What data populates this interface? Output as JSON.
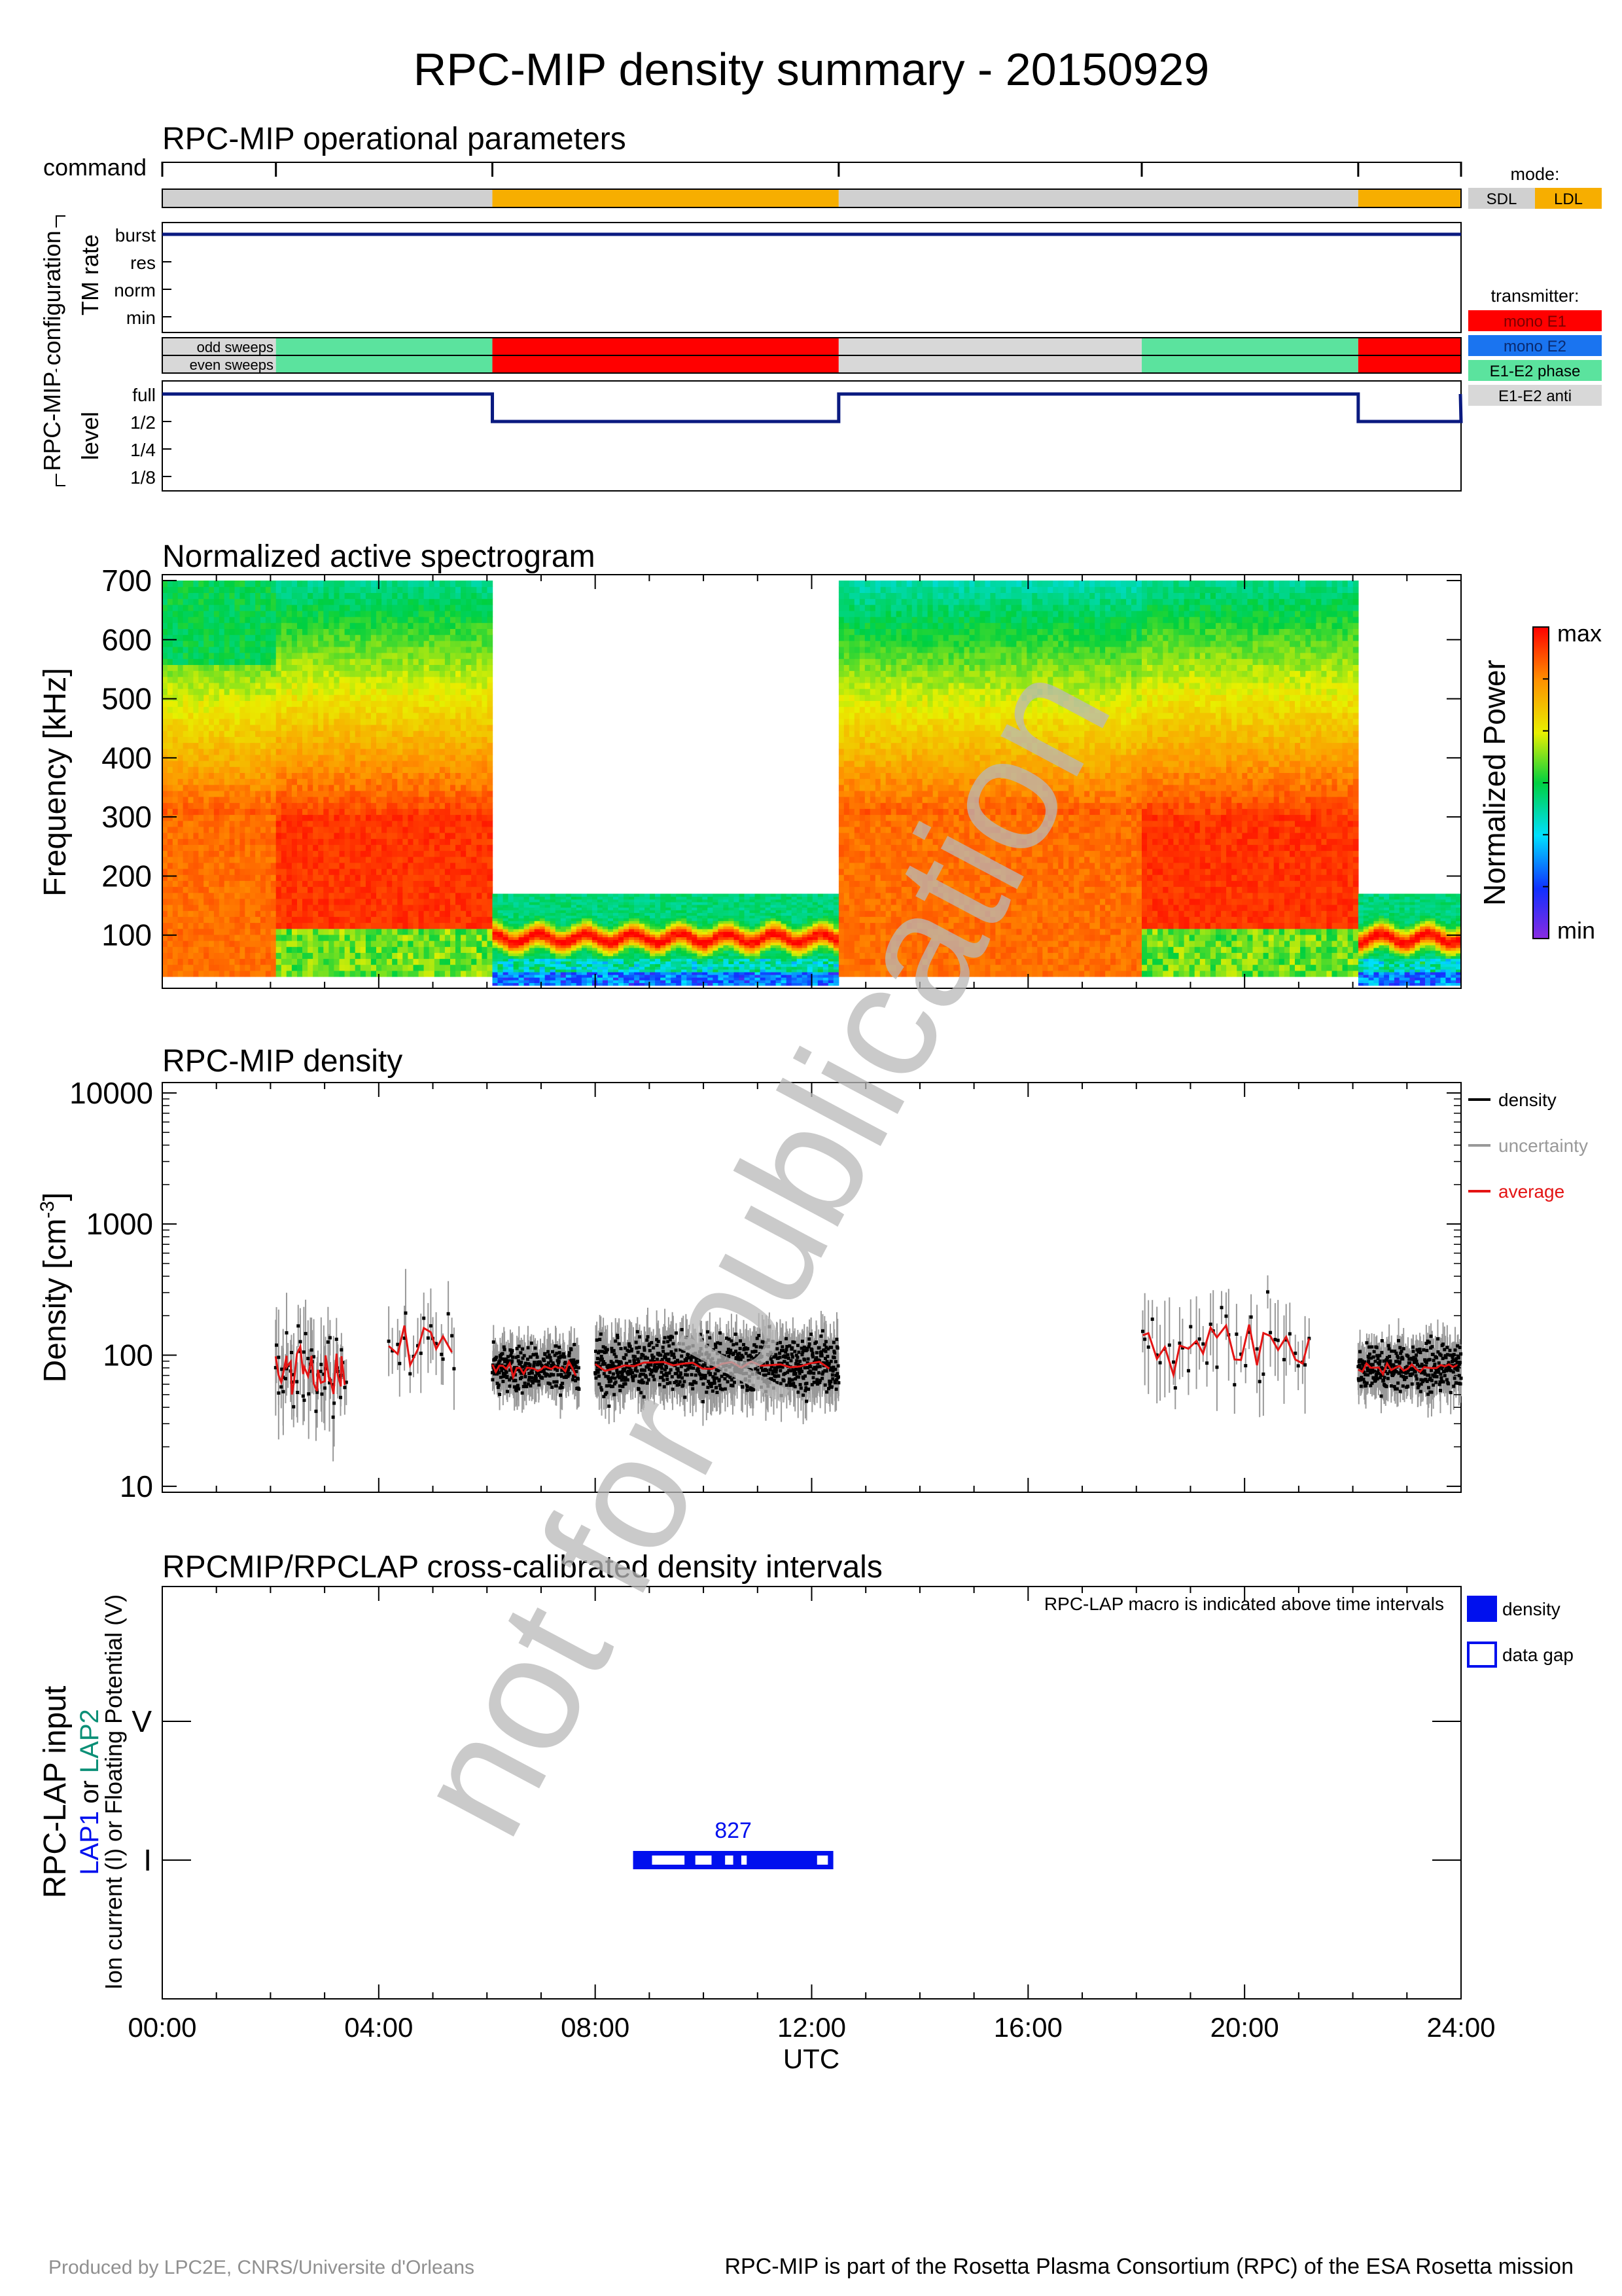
{
  "page": {
    "title": "RPC-MIP density summary - 20150929",
    "watermark": "not for publication",
    "footer_left": "Produced by LPC2E, CNRS/Universite d'Orleans",
    "footer_right": "RPC-MIP is part of the Rosetta Plasma Consortium (RPC) of the ESA Rosetta mission"
  },
  "colors": {
    "mode_sdl": "#d0d0d0",
    "mode_ldl": "#f7ae00",
    "mono_e1": "#ff0000",
    "mono_e2": "#1a74f0",
    "e1e2_phase": "#5be39e",
    "e1e2_anti": "#d8d8d8",
    "line_navy": "#0a1a80",
    "density": "#000000",
    "uncertainty": "#999999",
    "average": "#e41414",
    "lap_blue": "#0010ee",
    "lap2_teal": "#0a8f76"
  },
  "chart_data": [
    {
      "type": "table",
      "title": "RPC-MIP operational parameters",
      "group_label": "RPC-MIP configuration",
      "time_range_h": [
        0,
        24
      ],
      "command_label": "command",
      "command_times_h": [
        0,
        2.1,
        6.1,
        12.5,
        18.1,
        22.1,
        24
      ],
      "mode_legend_title": "mode:",
      "mode_legend": [
        {
          "label": "SDL",
          "color_key": "mode_sdl"
        },
        {
          "label": "LDL",
          "color_key": "mode_ldl"
        }
      ],
      "mode_segments": [
        {
          "start": 0,
          "end": 6.1,
          "mode": "SDL"
        },
        {
          "start": 6.1,
          "end": 12.5,
          "mode": "LDL"
        },
        {
          "start": 12.5,
          "end": 22.1,
          "mode": "SDL"
        },
        {
          "start": 22.1,
          "end": 24,
          "mode": "LDL"
        }
      ],
      "tm_rate": {
        "ylabel": "TM rate",
        "levels": [
          "burst",
          "res",
          "norm",
          "min"
        ],
        "steps": [
          {
            "start": 0,
            "end": 24,
            "level": "burst"
          }
        ]
      },
      "transmitter": {
        "legend_title": "transmitter:",
        "legend": [
          {
            "label": "mono E1",
            "color_key": "mono_e1"
          },
          {
            "label": "mono E2",
            "color_key": "mono_e2"
          },
          {
            "label": "E1-E2 phase",
            "color_key": "e1e2_phase"
          },
          {
            "label": "E1-E2 anti",
            "color_key": "e1e2_anti"
          }
        ],
        "odd_label": "odd sweeps",
        "even_label": "even sweeps",
        "odd_segments": [
          {
            "start": 0,
            "end": 2.1,
            "tx": "E1-E2 anti"
          },
          {
            "start": 2.1,
            "end": 6.1,
            "tx": "E1-E2 phase"
          },
          {
            "start": 6.1,
            "end": 12.5,
            "tx": "mono E1"
          },
          {
            "start": 12.5,
            "end": 18.1,
            "tx": "E1-E2 anti"
          },
          {
            "start": 18.1,
            "end": 22.1,
            "tx": "E1-E2 phase"
          },
          {
            "start": 22.1,
            "end": 24,
            "tx": "mono E1"
          }
        ],
        "even_segments": [
          {
            "start": 0,
            "end": 2.1,
            "tx": "E1-E2 anti"
          },
          {
            "start": 2.1,
            "end": 6.1,
            "tx": "E1-E2 phase"
          },
          {
            "start": 6.1,
            "end": 12.5,
            "tx": "mono E1"
          },
          {
            "start": 12.5,
            "end": 18.1,
            "tx": "E1-E2 anti"
          },
          {
            "start": 18.1,
            "end": 22.1,
            "tx": "E1-E2 phase"
          },
          {
            "start": 22.1,
            "end": 24,
            "tx": "mono E1"
          }
        ]
      },
      "level": {
        "ylabel": "level",
        "levels": [
          "full",
          "1/2",
          "1/4",
          "1/8"
        ],
        "steps": [
          {
            "start": 0,
            "end": 6.1,
            "level": "full"
          },
          {
            "start": 6.1,
            "end": 12.5,
            "level": "1/2"
          },
          {
            "start": 12.5,
            "end": 22.1,
            "level": "full"
          },
          {
            "start": 22.1,
            "end": 24,
            "level": "1/2"
          }
        ]
      }
    },
    {
      "type": "heatmap",
      "title": "Normalized active spectrogram",
      "ylabel": "Frequency [kHz]",
      "ylim": [
        10,
        710
      ],
      "yticks": [
        100,
        200,
        300,
        400,
        500,
        600,
        700
      ],
      "colorbar_label": "Normalized Power",
      "colorbar_max": "max",
      "colorbar_min": "min",
      "blocks": [
        {
          "start": 0,
          "end": 2.1,
          "fmin": 30,
          "fmax": 700,
          "kind": "sdl",
          "peak": 200
        },
        {
          "start": 2.1,
          "end": 6.1,
          "fmin": 30,
          "fmax": 700,
          "kind": "sdl_strong",
          "peak": 250
        },
        {
          "start": 6.1,
          "end": 12.5,
          "fmin": 15,
          "fmax": 170,
          "kind": "ldl",
          "peak": 95
        },
        {
          "start": 12.5,
          "end": 18.1,
          "fmin": 30,
          "fmax": 700,
          "kind": "sdl",
          "peak": 200
        },
        {
          "start": 18.1,
          "end": 22.1,
          "fmin": 30,
          "fmax": 700,
          "kind": "sdl_strong",
          "peak": 250
        },
        {
          "start": 22.1,
          "end": 24,
          "fmin": 15,
          "fmax": 170,
          "kind": "ldl",
          "peak": 95
        }
      ]
    },
    {
      "type": "scatter",
      "title": "RPC-MIP density",
      "ylabel": "Density [cm-3]",
      "ylabel_main": "Density [cm",
      "ylabel_sup": "-3",
      "ylabel_end": "]",
      "yscale": "log",
      "ylim": [
        9,
        12000
      ],
      "yticks": [
        "10",
        "100",
        "1000",
        "10000"
      ],
      "legend": [
        {
          "label": "density",
          "color_key": "density"
        },
        {
          "label": "uncertainty",
          "color_key": "uncertainty"
        },
        {
          "label": "average",
          "color_key": "average"
        }
      ],
      "clusters": [
        {
          "start": 2.1,
          "end": 3.4,
          "center": 75,
          "spread": 0.5,
          "n": 60
        },
        {
          "start": 4.2,
          "end": 5.4,
          "center": 120,
          "spread": 0.45,
          "n": 20
        },
        {
          "start": 6.1,
          "end": 7.7,
          "center": 80,
          "spread": 0.25,
          "n": 300
        },
        {
          "start": 8.0,
          "end": 12.5,
          "center": 85,
          "spread": 0.3,
          "n": 900
        },
        {
          "start": 18.1,
          "end": 21.2,
          "center": 110,
          "spread": 0.5,
          "n": 45
        },
        {
          "start": 22.1,
          "end": 24,
          "center": 80,
          "spread": 0.25,
          "n": 350
        }
      ]
    },
    {
      "type": "bar",
      "title": "RPCMIP/RPCLAP cross-calibrated density intervals",
      "ylabel_lines": [
        "RPC-LAP input"
      ],
      "ylabel_lap1": "LAP1",
      "ylabel_or": " or ",
      "ylabel_lap2": "LAP2",
      "ylabel_sub": "Ion current (I) or Floating Potential (V)",
      "ycategories": [
        "V",
        "I"
      ],
      "note": "RPC-LAP macro is indicated above time intervals",
      "legend": [
        {
          "label": "density",
          "filled": true
        },
        {
          "label": "data gap",
          "filled": false
        }
      ],
      "intervals": [
        {
          "start": 8.7,
          "end": 12.4,
          "input": "I",
          "macro": "827",
          "gaps": [
            [
              9.05,
              9.65
            ],
            [
              9.85,
              10.15
            ],
            [
              10.4,
              10.55
            ],
            [
              10.7,
              10.8
            ],
            [
              12.1,
              12.3
            ]
          ]
        }
      ],
      "xlabel": "UTC",
      "xticks": [
        "00:00",
        "04:00",
        "08:00",
        "12:00",
        "16:00",
        "20:00",
        "24:00"
      ],
      "xtick_values_h": [
        0,
        4,
        8,
        12,
        16,
        20,
        24
      ]
    }
  ]
}
